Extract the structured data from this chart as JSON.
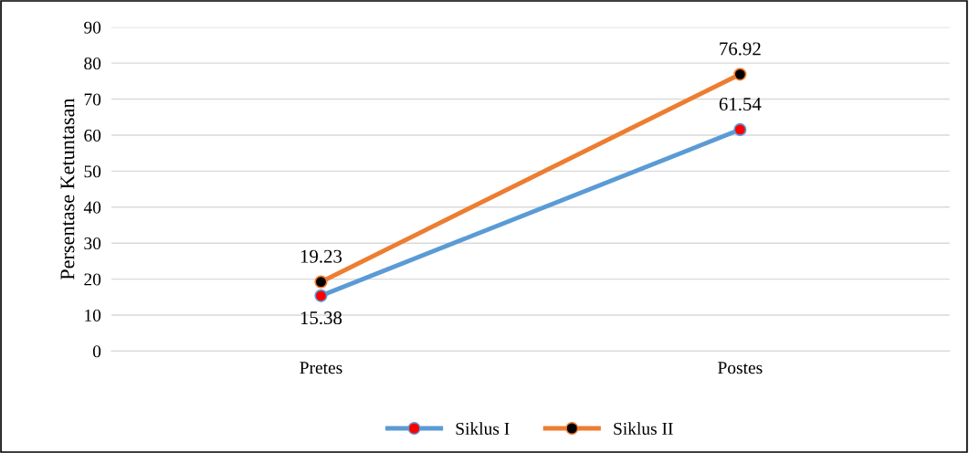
{
  "chart_data": {
    "type": "line",
    "ylabel": "Persentase Ketuntasan",
    "categories": [
      "Pretes",
      "Postes"
    ],
    "series": [
      {
        "name": "Siklus I",
        "color": "#5b9bd5",
        "colors": [
          "#ff0000",
          "#ff0000"
        ],
        "values": [
          15.38,
          61.54
        ]
      },
      {
        "name": "Siklus II",
        "color": "#ed7d31",
        "colors": [
          "#000000",
          "#000000"
        ],
        "values": [
          19.23,
          76.92
        ]
      }
    ],
    "ylim": [
      0,
      90
    ],
    "yticks": [
      0,
      10,
      20,
      30,
      40,
      50,
      60,
      70,
      80,
      90
    ],
    "grid": "y",
    "legend": "bottom",
    "marker": "circle",
    "line_style": "solid",
    "data_labels": true
  }
}
